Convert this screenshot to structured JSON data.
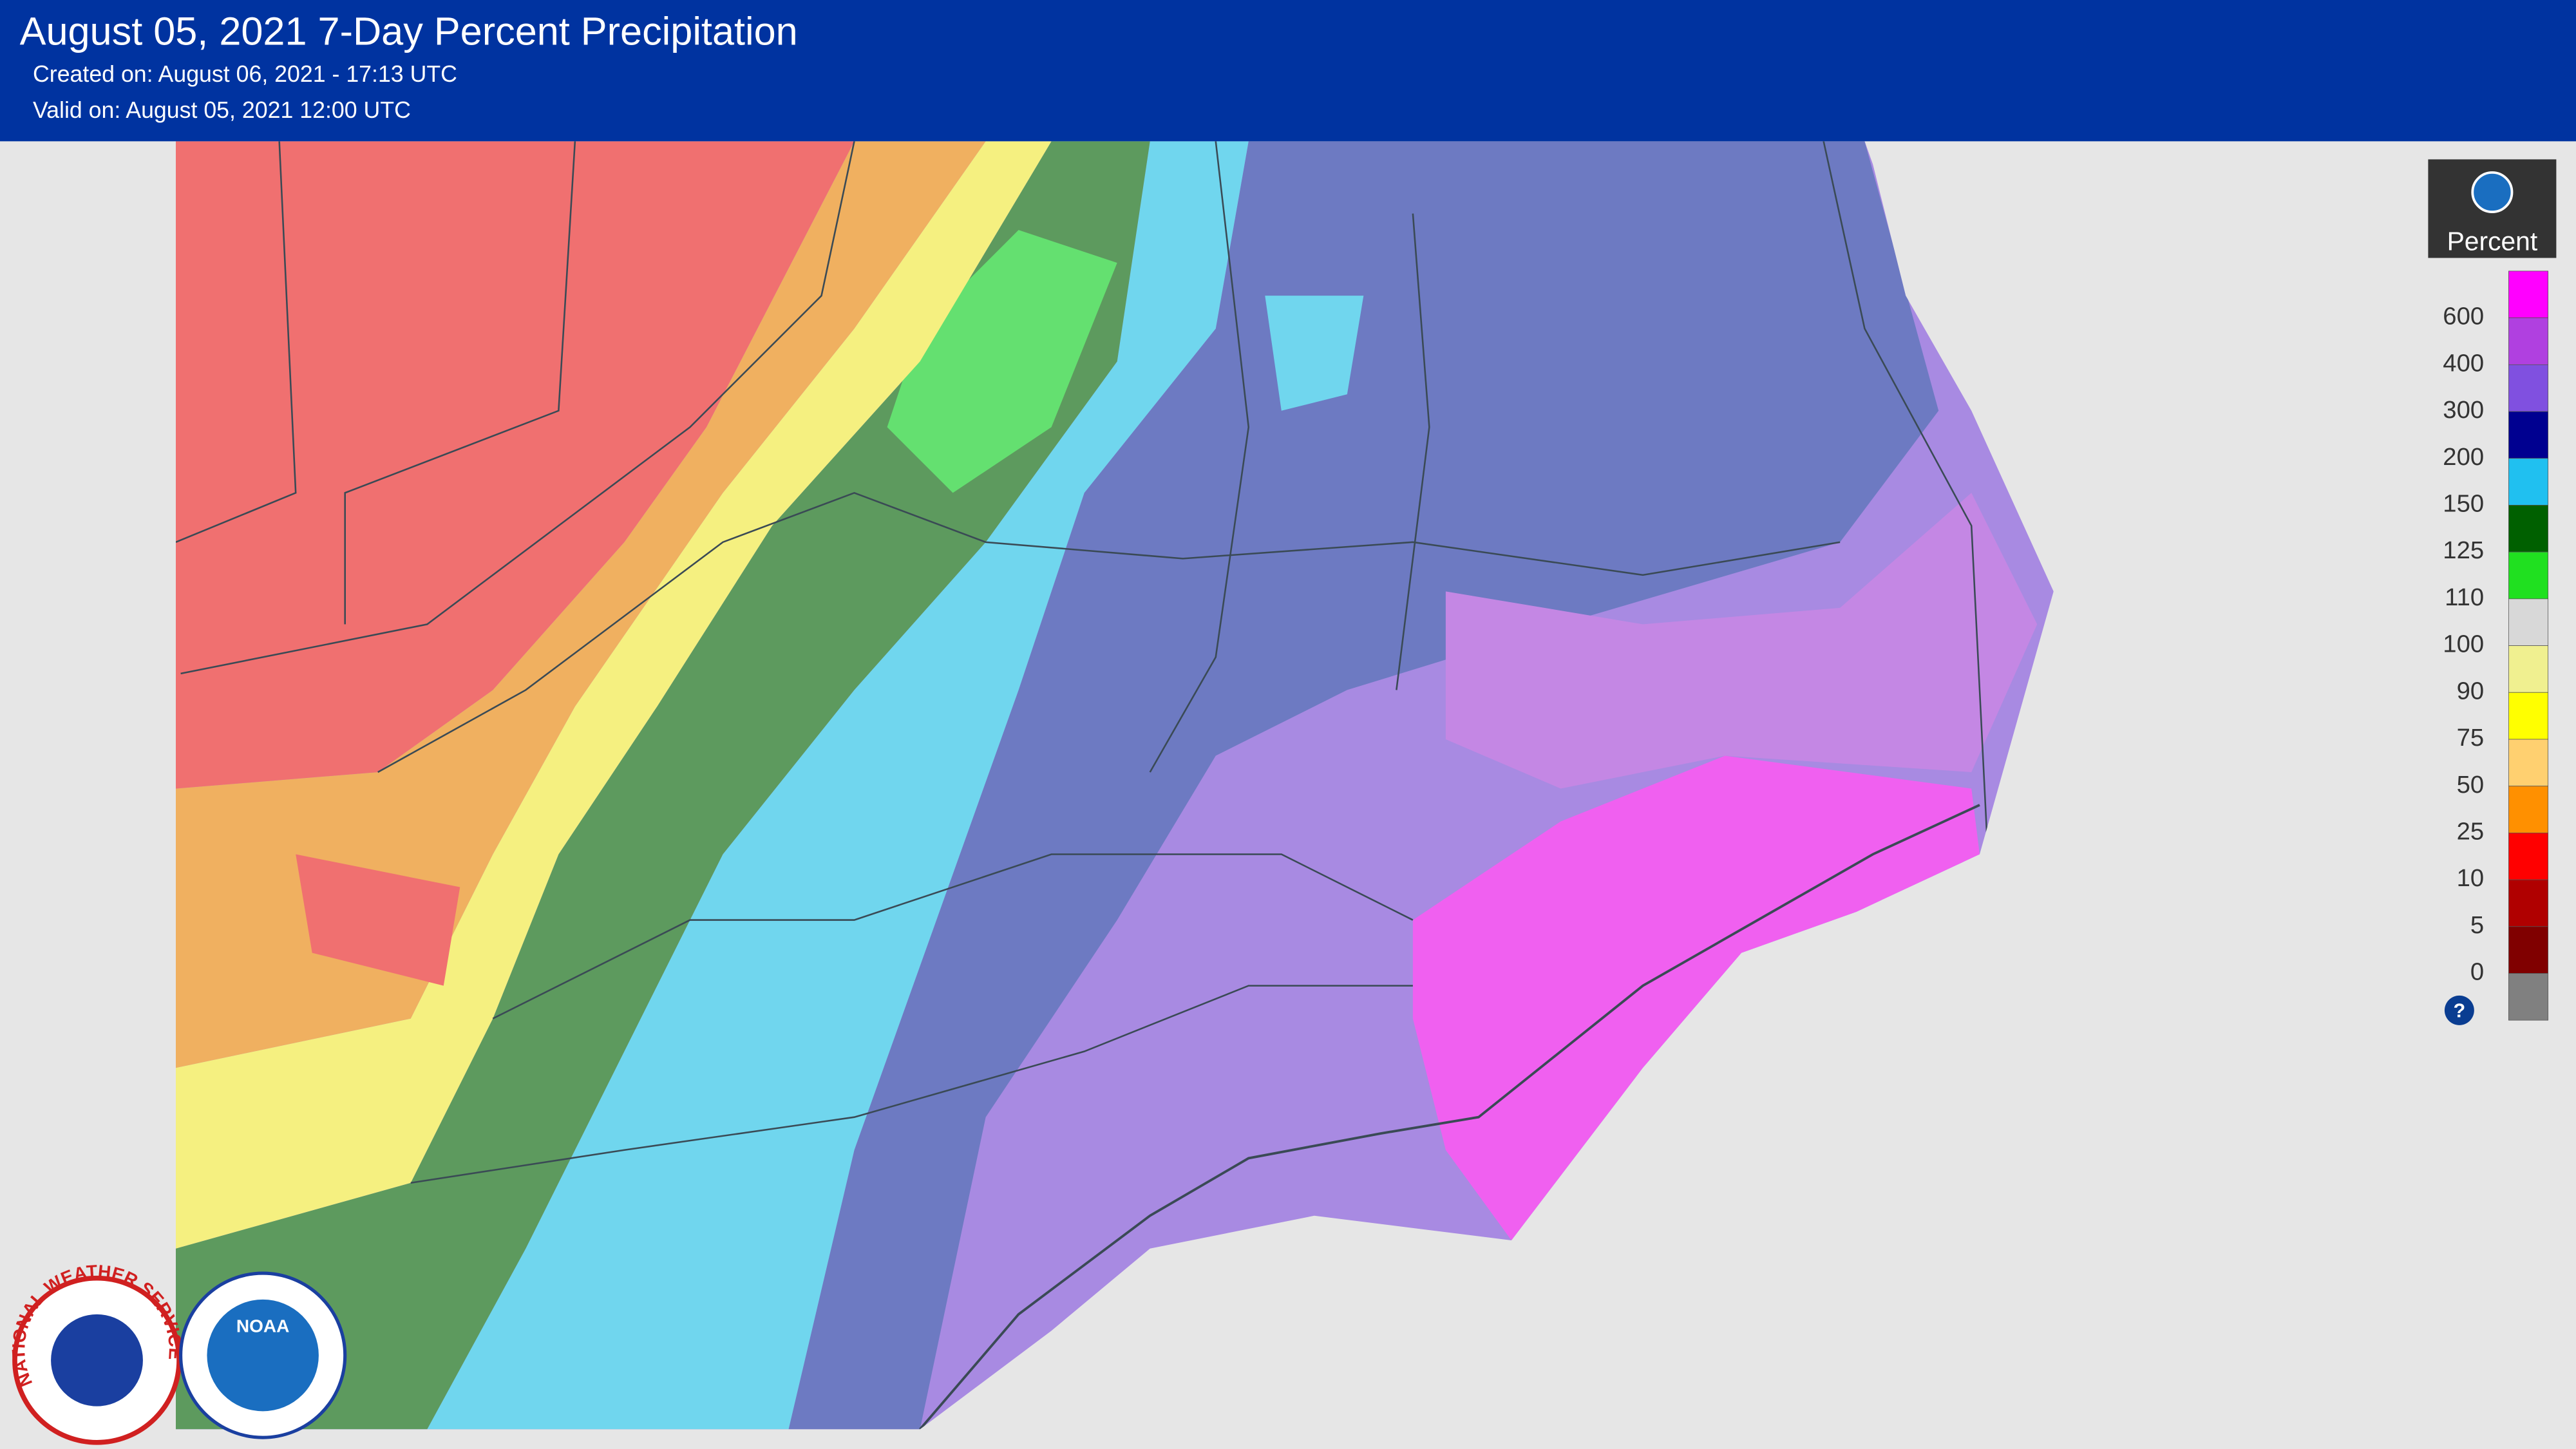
{
  "header": {
    "title": "August 05, 2021 7-Day Percent Precipitation",
    "created": "Created on: August 06, 2021 - 17:13 UTC",
    "valid": "Valid on: August 05, 2021 12:00 UTC"
  },
  "legend": {
    "title": "Percent",
    "help": "?",
    "labels": [
      600,
      400,
      300,
      200,
      150,
      125,
      110,
      100,
      90,
      75,
      50,
      25,
      10,
      5,
      0
    ],
    "colors": [
      "#ff00ff",
      "#b040e0",
      "#8050e0",
      "#000090",
      "#20c0f0",
      "#006000",
      "#20e020",
      "#d8d8d8",
      "#f0f090",
      "#ffff00",
      "#ffd070",
      "#ff9000",
      "#ff0000",
      "#b00000",
      "#800000",
      "#808080"
    ]
  },
  "logos": {
    "nws": "NATIONAL WEATHER SERVICE",
    "noaa": "NOAA"
  }
}
